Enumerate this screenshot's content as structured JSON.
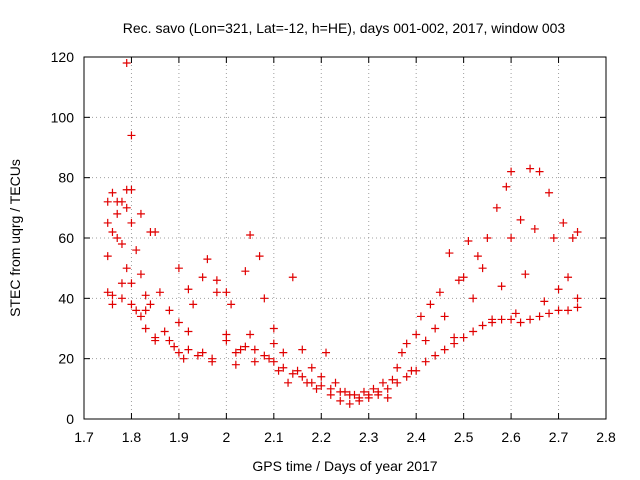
{
  "chart_data": {
    "type": "scatter",
    "title": "Rec. savo (Lon=321, Lat=-12, h=HE), days 001-002, 2017, window 003",
    "xlabel": "GPS time / Days of year 2017",
    "ylabel": "STEC from uqrg / TECUs",
    "xlim": [
      1.7,
      2.8
    ],
    "ylim": [
      0,
      120
    ],
    "x_ticks": [
      1.7,
      1.8,
      1.9,
      2.0,
      2.1,
      2.2,
      2.3,
      2.4,
      2.5,
      2.6,
      2.7,
      2.8
    ],
    "x_tick_labels": [
      "1.7",
      "1.8",
      "1.9",
      "2",
      "2.1",
      "2.2",
      "2.3",
      "2.4",
      "2.5",
      "2.6",
      "2.7",
      "2.8"
    ],
    "y_ticks": [
      0,
      20,
      40,
      60,
      80,
      100,
      120
    ],
    "y_tick_labels": [
      "0",
      "20",
      "40",
      "60",
      "80",
      "100",
      "120"
    ],
    "grid": true,
    "marker": "+",
    "color": "#e00000",
    "series": [
      {
        "name": "STEC",
        "points": [
          [
            1.75,
            72
          ],
          [
            1.75,
            65
          ],
          [
            1.75,
            54
          ],
          [
            1.75,
            42
          ],
          [
            1.76,
            41
          ],
          [
            1.76,
            62
          ],
          [
            1.76,
            75
          ],
          [
            1.77,
            68
          ],
          [
            1.77,
            60
          ],
          [
            1.77,
            72
          ],
          [
            1.78,
            72
          ],
          [
            1.78,
            58
          ],
          [
            1.78,
            40
          ],
          [
            1.79,
            70
          ],
          [
            1.79,
            76
          ],
          [
            1.79,
            50
          ],
          [
            1.79,
            118
          ],
          [
            1.8,
            76
          ],
          [
            1.8,
            65
          ],
          [
            1.8,
            94
          ],
          [
            1.8,
            45
          ],
          [
            1.81,
            56
          ],
          [
            1.81,
            36
          ],
          [
            1.82,
            68
          ],
          [
            1.82,
            48
          ],
          [
            1.82,
            34
          ],
          [
            1.83,
            30
          ],
          [
            1.83,
            41
          ],
          [
            1.84,
            62
          ],
          [
            1.84,
            38
          ],
          [
            1.85,
            62
          ],
          [
            1.85,
            26
          ],
          [
            1.86,
            42
          ],
          [
            1.87,
            29
          ],
          [
            1.88,
            36
          ],
          [
            1.89,
            24
          ],
          [
            1.9,
            50
          ],
          [
            1.9,
            32
          ],
          [
            1.91,
            20
          ],
          [
            1.92,
            43
          ],
          [
            1.92,
            29
          ],
          [
            1.93,
            38
          ],
          [
            1.94,
            21
          ],
          [
            1.95,
            47
          ],
          [
            1.96,
            53
          ],
          [
            1.97,
            19
          ],
          [
            1.98,
            46
          ],
          [
            1.98,
            42
          ],
          [
            2.0,
            42
          ],
          [
            2.0,
            28
          ],
          [
            2.01,
            38
          ],
          [
            2.02,
            18
          ],
          [
            2.03,
            23
          ],
          [
            2.04,
            49
          ],
          [
            2.05,
            28
          ],
          [
            2.05,
            61
          ],
          [
            2.06,
            23
          ],
          [
            2.07,
            54
          ],
          [
            2.08,
            40
          ],
          [
            2.09,
            20
          ],
          [
            2.1,
            25
          ],
          [
            2.1,
            30
          ],
          [
            2.11,
            16
          ],
          [
            2.12,
            22
          ],
          [
            2.13,
            12
          ],
          [
            2.14,
            47
          ],
          [
            2.15,
            16
          ],
          [
            2.16,
            23
          ],
          [
            2.17,
            12
          ],
          [
            2.18,
            17
          ],
          [
            2.19,
            10
          ],
          [
            2.2,
            14
          ],
          [
            2.21,
            22
          ],
          [
            2.22,
            8
          ],
          [
            2.23,
            12
          ],
          [
            2.24,
            6
          ],
          [
            2.25,
            9
          ],
          [
            2.26,
            5
          ],
          [
            2.27,
            8
          ],
          [
            2.28,
            6
          ],
          [
            2.29,
            9
          ],
          [
            2.3,
            7
          ],
          [
            2.31,
            10
          ],
          [
            2.32,
            8
          ],
          [
            2.33,
            12
          ],
          [
            2.34,
            7
          ],
          [
            2.35,
            13
          ],
          [
            2.36,
            17
          ],
          [
            2.37,
            22
          ],
          [
            2.38,
            25
          ],
          [
            2.39,
            16
          ],
          [
            2.4,
            28
          ],
          [
            2.41,
            34
          ],
          [
            2.42,
            26
          ],
          [
            2.43,
            38
          ],
          [
            2.44,
            30
          ],
          [
            2.45,
            42
          ],
          [
            2.46,
            34
          ],
          [
            2.47,
            55
          ],
          [
            2.48,
            27
          ],
          [
            2.49,
            46
          ],
          [
            2.5,
            47
          ],
          [
            2.51,
            59
          ],
          [
            2.52,
            40
          ],
          [
            2.53,
            54
          ],
          [
            2.54,
            50
          ],
          [
            2.55,
            60
          ],
          [
            2.56,
            33
          ],
          [
            2.57,
            70
          ],
          [
            2.58,
            44
          ],
          [
            2.59,
            77
          ],
          [
            2.6,
            82
          ],
          [
            2.6,
            60
          ],
          [
            2.61,
            35
          ],
          [
            2.62,
            66
          ],
          [
            2.63,
            48
          ],
          [
            2.64,
            83
          ],
          [
            2.65,
            63
          ],
          [
            2.66,
            82
          ],
          [
            2.67,
            39
          ],
          [
            2.68,
            75
          ],
          [
            2.69,
            60
          ],
          [
            2.7,
            43
          ],
          [
            2.71,
            65
          ],
          [
            2.72,
            47
          ],
          [
            2.73,
            60
          ],
          [
            2.74,
            62
          ],
          [
            2.74,
            40
          ],
          [
            1.76,
            38
          ],
          [
            1.78,
            45
          ],
          [
            1.8,
            38
          ],
          [
            1.83,
            36
          ],
          [
            1.85,
            27
          ],
          [
            1.88,
            26
          ],
          [
            1.9,
            22
          ],
          [
            1.92,
            23
          ],
          [
            1.95,
            22
          ],
          [
            1.97,
            20
          ],
          [
            2.0,
            26
          ],
          [
            2.02,
            22
          ],
          [
            2.04,
            24
          ],
          [
            2.06,
            19
          ],
          [
            2.08,
            21
          ],
          [
            2.1,
            19
          ],
          [
            2.12,
            17
          ],
          [
            2.14,
            15
          ],
          [
            2.16,
            14
          ],
          [
            2.18,
            12
          ],
          [
            2.2,
            11
          ],
          [
            2.22,
            10
          ],
          [
            2.24,
            9
          ],
          [
            2.26,
            8
          ],
          [
            2.28,
            7
          ],
          [
            2.3,
            8
          ],
          [
            2.32,
            9
          ],
          [
            2.34,
            10
          ],
          [
            2.36,
            12
          ],
          [
            2.38,
            14
          ],
          [
            2.4,
            16
          ],
          [
            2.42,
            19
          ],
          [
            2.44,
            21
          ],
          [
            2.46,
            23
          ],
          [
            2.48,
            25
          ],
          [
            2.5,
            27
          ],
          [
            2.52,
            29
          ],
          [
            2.54,
            31
          ],
          [
            2.56,
            32
          ],
          [
            2.58,
            33
          ],
          [
            2.6,
            33
          ],
          [
            2.62,
            32
          ],
          [
            2.64,
            33
          ],
          [
            2.66,
            34
          ],
          [
            2.68,
            35
          ],
          [
            2.7,
            36
          ],
          [
            2.72,
            36
          ],
          [
            2.74,
            37
          ]
        ]
      }
    ]
  }
}
